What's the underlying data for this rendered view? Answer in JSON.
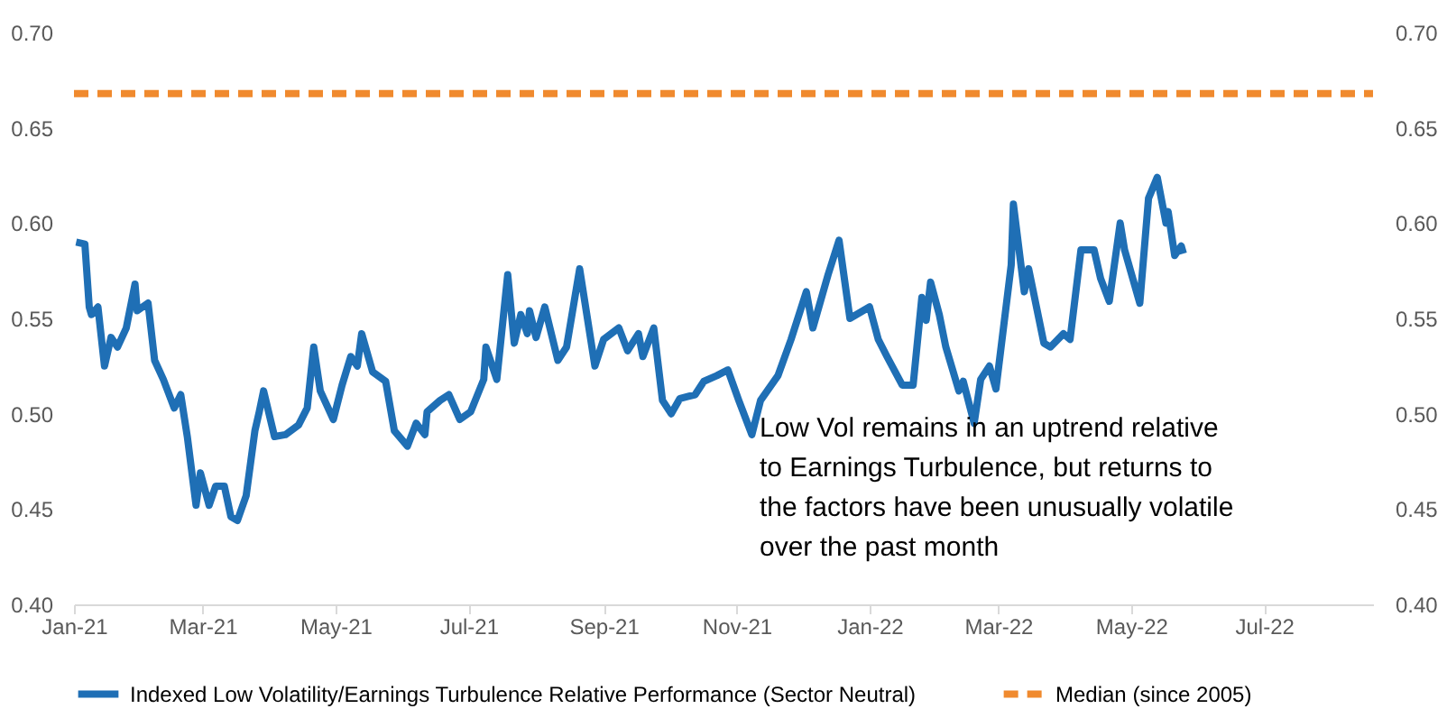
{
  "chart_data": {
    "type": "line",
    "annotations": [
      "Low Vol remains in an uptrend relative\nto Earnings Turbulence, but returns to\nthe factors have been unusually volatile\nover the past month"
    ],
    "xlim": [
      "2021-01-01",
      "2022-08-20"
    ],
    "xticks": [
      {
        "value": "2021-01-01",
        "label": "Jan-21"
      },
      {
        "value": "2021-03-01",
        "label": "Mar-21"
      },
      {
        "value": "2021-05-01",
        "label": "May-21"
      },
      {
        "value": "2021-07-01",
        "label": "Jul-21"
      },
      {
        "value": "2021-09-01",
        "label": "Sep-21"
      },
      {
        "value": "2021-11-01",
        "label": "Nov-21"
      },
      {
        "value": "2022-01-01",
        "label": "Jan-22"
      },
      {
        "value": "2022-03-01",
        "label": "Mar-22"
      },
      {
        "value": "2022-05-01",
        "label": "May-22"
      },
      {
        "value": "2022-07-01",
        "label": "Jul-22"
      }
    ],
    "ylim": [
      0.4,
      0.7
    ],
    "yticks": [
      {
        "value": 0.4,
        "label": "0.40"
      },
      {
        "value": 0.45,
        "label": "0.45"
      },
      {
        "value": 0.5,
        "label": "0.50"
      },
      {
        "value": 0.55,
        "label": "0.55"
      },
      {
        "value": 0.6,
        "label": "0.60"
      },
      {
        "value": 0.65,
        "label": "0.65"
      },
      {
        "value": 0.7,
        "label": "0.70"
      }
    ],
    "y2lim": [
      0.4,
      0.7
    ],
    "y2ticks": [
      {
        "value": 0.4,
        "label": "0.40"
      },
      {
        "value": 0.45,
        "label": "0.45"
      },
      {
        "value": 0.5,
        "label": "0.50"
      },
      {
        "value": 0.55,
        "label": "0.55"
      },
      {
        "value": 0.6,
        "label": "0.60"
      },
      {
        "value": 0.65,
        "label": "0.65"
      },
      {
        "value": 0.7,
        "label": "0.70"
      }
    ],
    "grid": false,
    "legend": "bottom",
    "marker": "none",
    "series": [
      {
        "name": "Indexed Low Volatility/Earnings Turbulence Relative Performance (Sector Neutral)",
        "color": "#1f6fb5",
        "line_style": "solid",
        "x": [
          "2021-01-02",
          "2021-01-06",
          "2021-01-08",
          "2021-01-09",
          "2021-01-12",
          "2021-01-15",
          "2021-01-18",
          "2021-01-21",
          "2021-01-25",
          "2021-01-29",
          "2021-01-30",
          "2021-02-04",
          "2021-02-07",
          "2021-02-11",
          "2021-02-16",
          "2021-02-19",
          "2021-02-22",
          "2021-02-26",
          "2021-02-28",
          "2021-03-04",
          "2021-03-07",
          "2021-03-11",
          "2021-03-14",
          "2021-03-17",
          "2021-03-21",
          "2021-03-25",
          "2021-03-27",
          "2021-03-29",
          "2021-04-03",
          "2021-04-08",
          "2021-04-14",
          "2021-04-18",
          "2021-04-21",
          "2021-04-24",
          "2021-04-30",
          "2021-05-04",
          "2021-05-08",
          "2021-05-11",
          "2021-05-13",
          "2021-05-18",
          "2021-05-24",
          "2021-05-28",
          "2021-06-03",
          "2021-06-07",
          "2021-06-11",
          "2021-06-12",
          "2021-06-18",
          "2021-06-22",
          "2021-06-27",
          "2021-07-02",
          "2021-07-08",
          "2021-07-09",
          "2021-07-14",
          "2021-07-19",
          "2021-07-22",
          "2021-07-25",
          "2021-07-28",
          "2021-07-29",
          "2021-08-01",
          "2021-08-05",
          "2021-08-11",
          "2021-08-15",
          "2021-08-21",
          "2021-08-28",
          "2021-09-01",
          "2021-09-08",
          "2021-09-12",
          "2021-09-17",
          "2021-09-19",
          "2021-09-24",
          "2021-09-28",
          "2021-10-02",
          "2021-10-06",
          "2021-10-13",
          "2021-10-17",
          "2021-10-23",
          "2021-10-28",
          "2021-11-02",
          "2021-11-08",
          "2021-11-12",
          "2021-11-20",
          "2021-11-26",
          "2021-12-03",
          "2021-12-06",
          "2021-12-13",
          "2021-12-18",
          "2021-12-23",
          "2022-01-01",
          "2022-01-05",
          "2022-01-09",
          "2022-01-16",
          "2022-01-21",
          "2022-01-25",
          "2022-01-27",
          "2022-01-29",
          "2022-02-02",
          "2022-02-05",
          "2022-02-11",
          "2022-02-13",
          "2022-02-18",
          "2022-02-21",
          "2022-02-25",
          "2022-02-28",
          "2022-03-07",
          "2022-03-08",
          "2022-03-13",
          "2022-03-15",
          "2022-03-22",
          "2022-03-25",
          "2022-03-31",
          "2022-04-03",
          "2022-04-08",
          "2022-04-14",
          "2022-04-17",
          "2022-04-21",
          "2022-04-26",
          "2022-04-28",
          "2022-05-05",
          "2022-05-09",
          "2022-05-13",
          "2022-05-17",
          "2022-05-18",
          "2022-05-21",
          "2022-05-24",
          "2022-05-25"
        ],
        "values": [
          0.59,
          0.589,
          0.556,
          0.552,
          0.556,
          0.525,
          0.54,
          0.535,
          0.545,
          0.568,
          0.554,
          0.558,
          0.528,
          0.518,
          0.503,
          0.51,
          0.488,
          0.452,
          0.469,
          0.452,
          0.462,
          0.462,
          0.446,
          0.444,
          0.457,
          0.491,
          0.501,
          0.512,
          0.488,
          0.489,
          0.494,
          0.503,
          0.535,
          0.512,
          0.497,
          0.515,
          0.53,
          0.525,
          0.542,
          0.522,
          0.517,
          0.491,
          0.483,
          0.495,
          0.489,
          0.501,
          0.507,
          0.51,
          0.497,
          0.501,
          0.518,
          0.535,
          0.518,
          0.573,
          0.537,
          0.552,
          0.542,
          0.554,
          0.54,
          0.556,
          0.528,
          0.535,
          0.576,
          0.525,
          0.539,
          0.545,
          0.533,
          0.542,
          0.53,
          0.545,
          0.507,
          0.5,
          0.508,
          0.51,
          0.517,
          0.52,
          0.523,
          0.507,
          0.489,
          0.507,
          0.52,
          0.539,
          0.564,
          0.545,
          0.573,
          0.591,
          0.55,
          0.556,
          0.539,
          0.53,
          0.515,
          0.515,
          0.561,
          0.549,
          0.569,
          0.552,
          0.535,
          0.512,
          0.517,
          0.495,
          0.518,
          0.525,
          0.513,
          0.578,
          0.61,
          0.564,
          0.576,
          0.537,
          0.535,
          0.542,
          0.539,
          0.586,
          0.586,
          0.571,
          0.559,
          0.6,
          0.586,
          0.558,
          0.613,
          0.624,
          0.6,
          0.606,
          0.583,
          0.588,
          0.584
        ]
      },
      {
        "name": "Median (since 2005)",
        "color": "#f08a2e",
        "line_style": "dashed",
        "x": [
          "2021-01-01",
          "2022-08-20"
        ],
        "values": [
          0.668,
          0.668
        ]
      }
    ]
  }
}
